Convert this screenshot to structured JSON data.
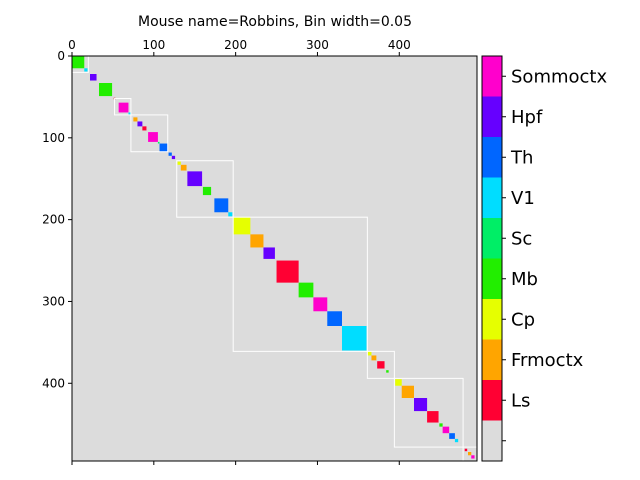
{
  "chart_data": {
    "type": "heatmap",
    "title": "Mouse name=Robbins, Bin width=0.05",
    "background_color": "#dcdcdc",
    "xlim": [
      0,
      495
    ],
    "ylim": [
      0,
      495
    ],
    "x_ticks": [
      0,
      100,
      200,
      300,
      400
    ],
    "y_ticks": [
      0,
      100,
      200,
      300,
      400
    ],
    "x_tick_labels": [
      "0",
      "100",
      "200",
      "300",
      "400"
    ],
    "y_tick_labels": [
      "0",
      "100",
      "200",
      "300",
      "400"
    ],
    "x_axis_position": "top",
    "colorbar": {
      "labels": [
        "",
        "Ls",
        "Frmoctx",
        "Cp",
        "Mb",
        "Sc",
        "V1",
        "Th",
        "Hpf",
        "Sommoctx"
      ],
      "colors": [
        "#dcdcdc",
        "#ff0033",
        "#ffa500",
        "#e6ff00",
        "#22ee00",
        "#00ee66",
        "#00ddff",
        "#0066ff",
        "#6600ff",
        "#ff00cc"
      ]
    },
    "blocks": [
      {
        "start": 0,
        "end": 15,
        "region": "Mb"
      },
      {
        "start": 15,
        "end": 19,
        "region": "V1"
      },
      {
        "start": 22,
        "end": 30,
        "region": "Hpf"
      },
      {
        "start": 33,
        "end": 49,
        "region": "Mb"
      },
      {
        "start": 51,
        "end": 53,
        "region": "Ls"
      },
      {
        "start": 57,
        "end": 69,
        "region": "Sommoctx"
      },
      {
        "start": 69,
        "end": 72,
        "region": "V1"
      },
      {
        "start": 75,
        "end": 80,
        "region": "Frmoctx"
      },
      {
        "start": 80,
        "end": 86,
        "region": "Hpf"
      },
      {
        "start": 86,
        "end": 91,
        "region": "Ls"
      },
      {
        "start": 93,
        "end": 105,
        "region": "Sommoctx"
      },
      {
        "start": 105,
        "end": 107,
        "region": "Sc"
      },
      {
        "start": 107,
        "end": 117,
        "region": "Th"
      },
      {
        "start": 118,
        "end": 122,
        "region": "Th"
      },
      {
        "start": 122,
        "end": 126,
        "region": "Hpf"
      },
      {
        "start": 129,
        "end": 133,
        "region": "Cp"
      },
      {
        "start": 133,
        "end": 140,
        "region": "Frmoctx"
      },
      {
        "start": 141,
        "end": 159,
        "region": "Hpf"
      },
      {
        "start": 160,
        "end": 170,
        "region": "Mb"
      },
      {
        "start": 174,
        "end": 191,
        "region": "Th"
      },
      {
        "start": 191,
        "end": 196,
        "region": "V1"
      },
      {
        "start": 197,
        "end": 218,
        "region": "Cp"
      },
      {
        "start": 218,
        "end": 234,
        "region": "Frmoctx"
      },
      {
        "start": 234,
        "end": 248,
        "region": "Hpf"
      },
      {
        "start": 250,
        "end": 277,
        "region": "Ls"
      },
      {
        "start": 277,
        "end": 295,
        "region": "Mb"
      },
      {
        "start": 295,
        "end": 312,
        "region": "Sommoctx"
      },
      {
        "start": 312,
        "end": 330,
        "region": "Th"
      },
      {
        "start": 330,
        "end": 360,
        "region": "V1"
      },
      {
        "start": 361,
        "end": 366,
        "region": "Cp"
      },
      {
        "start": 366,
        "end": 372,
        "region": "Frmoctx"
      },
      {
        "start": 373,
        "end": 382,
        "region": "Ls"
      },
      {
        "start": 384,
        "end": 387,
        "region": "Mb"
      },
      {
        "start": 395,
        "end": 403,
        "region": "Cp"
      },
      {
        "start": 403,
        "end": 418,
        "region": "Frmoctx"
      },
      {
        "start": 418,
        "end": 434,
        "region": "Hpf"
      },
      {
        "start": 434,
        "end": 448,
        "region": "Ls"
      },
      {
        "start": 449,
        "end": 453,
        "region": "Mb"
      },
      {
        "start": 453,
        "end": 461,
        "region": "Sommoctx"
      },
      {
        "start": 461,
        "end": 468,
        "region": "Th"
      },
      {
        "start": 468,
        "end": 472,
        "region": "V1"
      },
      {
        "start": 480,
        "end": 483,
        "region": "Ls"
      },
      {
        "start": 484,
        "end": 488,
        "region": "Frmoctx"
      },
      {
        "start": 488,
        "end": 492,
        "region": "Sommoctx"
      }
    ],
    "cluster_boxes": [
      {
        "start": 0,
        "end": 20
      },
      {
        "start": 52,
        "end": 72
      },
      {
        "start": 72,
        "end": 117
      },
      {
        "start": 128,
        "end": 197
      },
      {
        "start": 197,
        "end": 361
      },
      {
        "start": 361,
        "end": 394
      },
      {
        "start": 394,
        "end": 478
      },
      {
        "start": 478,
        "end": 495
      }
    ],
    "outline_color": "#ffffff"
  }
}
